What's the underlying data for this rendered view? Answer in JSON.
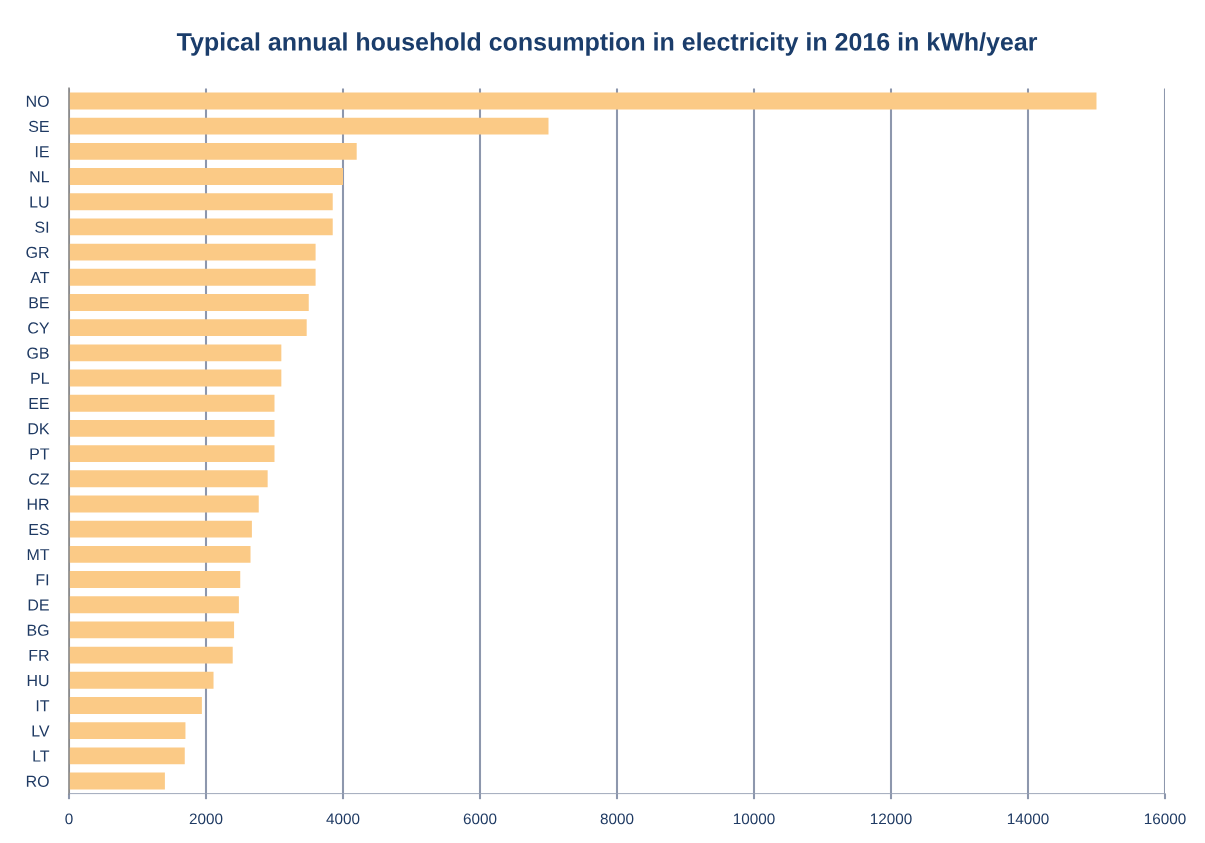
{
  "chart_data": {
    "type": "bar",
    "orientation": "horizontal",
    "title": "Typical annual household consumption in electricity in 2016 in kWh/year",
    "categories": [
      "NO",
      "SE",
      "IE",
      "NL",
      "LU",
      "SI",
      "GR",
      "AT",
      "BE",
      "CY",
      "GB",
      "PL",
      "EE",
      "DK",
      "PT",
      "CZ",
      "HR",
      "ES",
      "MT",
      "FI",
      "DE",
      "BG",
      "FR",
      "HU",
      "IT",
      "LV",
      "LT",
      "RO"
    ],
    "values": [
      15000,
      7000,
      4200,
      4000,
      3850,
      3850,
      3600,
      3600,
      3500,
      3470,
      3100,
      3100,
      3000,
      3000,
      3000,
      2900,
      2770,
      2670,
      2650,
      2500,
      2480,
      2410,
      2390,
      2110,
      1940,
      1700,
      1690,
      1400
    ],
    "color": "#fbca86",
    "xlim": [
      0,
      16000
    ],
    "xticks": [
      0,
      2000,
      4000,
      6000,
      8000,
      10000,
      12000,
      14000,
      16000
    ],
    "grid": "x"
  }
}
